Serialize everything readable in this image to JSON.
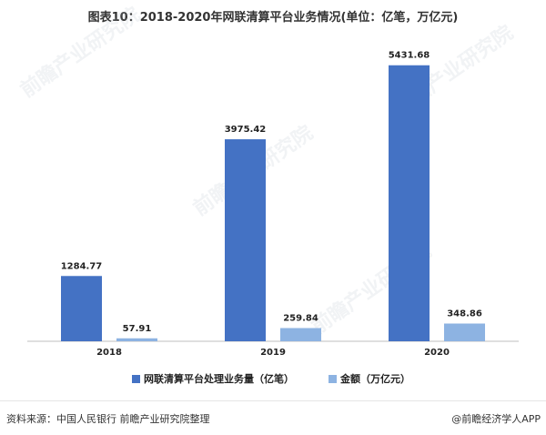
{
  "title": "图表10：2018-2020年网联清算平台业务情况(单位：亿笔，万亿元)",
  "source_text": "资料来源：中国人民银行 前瞻产业研究院整理",
  "brand_text": "@前瞻经济学人APP",
  "watermark_text": "前瞻产业研究院",
  "colors": {
    "series1": "#4472c4",
    "series2": "#8db3e2",
    "axis": "#bfbfbf"
  },
  "chart_data": {
    "type": "bar",
    "categories": [
      "2018",
      "2019",
      "2020"
    ],
    "series": [
      {
        "name": "网联清算平台处理业务量（亿笔）",
        "values": [
          1284.77,
          3975.42,
          5431.68
        ]
      },
      {
        "name": "金额（万亿元）",
        "values": [
          57.91,
          259.84,
          348.86
        ]
      }
    ],
    "ylim": [
      0,
      6000
    ],
    "grid": false,
    "legend": "bottom"
  }
}
